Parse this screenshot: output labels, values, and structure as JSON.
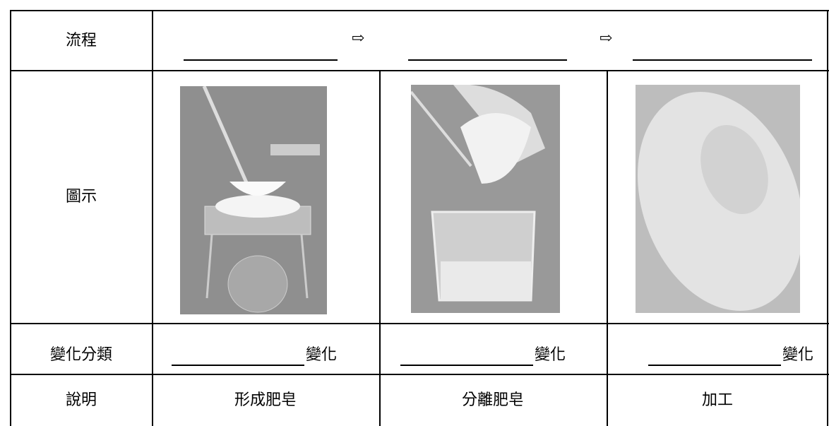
{
  "table": {
    "rows": [
      {
        "header": "流程",
        "arrows": [
          "⇨",
          "⇨"
        ]
      },
      {
        "header": "圖示"
      },
      {
        "header": "變化分類",
        "suffixes": [
          "變化",
          "變化",
          "變化"
        ]
      },
      {
        "header": "說明",
        "cells": [
          "形成肥皂",
          "分離肥皂",
          "加工"
        ]
      }
    ]
  }
}
